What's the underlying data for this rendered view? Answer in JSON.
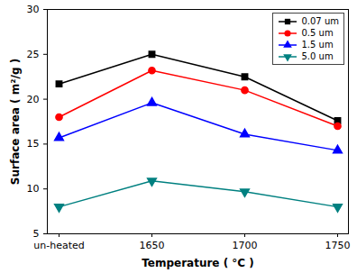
{
  "chart_data": {
    "type": "line",
    "x_label": "Temperature ( °C )",
    "y_label": "Surface area ( m²/g )",
    "categories": [
      "un-heated",
      "1650",
      "1700",
      "1750"
    ],
    "series": [
      {
        "name": "0.07 um",
        "color": "#000000",
        "marker": "square",
        "values": [
          21.7,
          25.0,
          22.5,
          17.6
        ]
      },
      {
        "name": "0.5 um",
        "color": "#ff0000",
        "marker": "circle",
        "values": [
          18.0,
          23.2,
          21.0,
          17.0
        ]
      },
      {
        "name": "1.5 um",
        "color": "#0000ff",
        "marker": "triangle",
        "values": [
          15.7,
          19.6,
          16.1,
          14.3
        ]
      },
      {
        "name": "5.0 um",
        "color": "#008080",
        "marker": "triangle-down",
        "values": [
          8.0,
          10.9,
          9.7,
          8.0
        ]
      }
    ],
    "ylim": [
      5,
      30
    ],
    "yticks": [
      5,
      10,
      15,
      20,
      25,
      30
    ],
    "legend": "top-right",
    "grid": false
  }
}
